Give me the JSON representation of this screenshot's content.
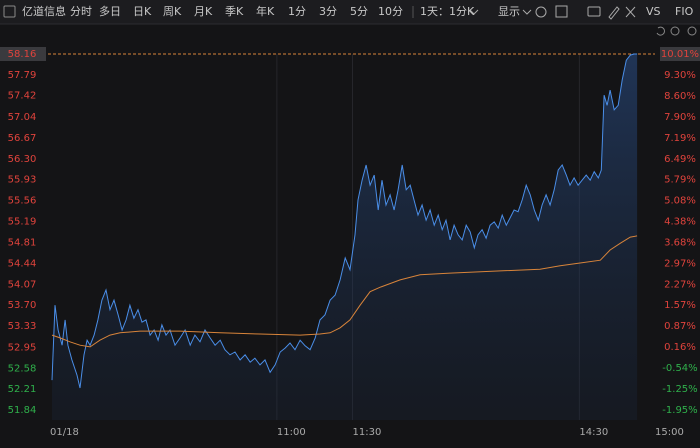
{
  "toolbar": {
    "stock": "亿道信息",
    "tabs": [
      "分时",
      "多日",
      "日K",
      "周K",
      "月K",
      "季K",
      "年K",
      "1分",
      "3分",
      "5分",
      "10分"
    ],
    "period": "1天：1分K",
    "display": "显示",
    "vs": "VS",
    "fio": "FIO"
  },
  "chart_data": {
    "type": "line",
    "xlim": [
      0,
      240
    ],
    "xticks": [
      {
        "value": 0,
        "label": "01/18"
      },
      {
        "value": 90,
        "label": "11:00"
      },
      {
        "value": 120,
        "label": "11:30"
      },
      {
        "value": 210,
        "label": "14:30"
      },
      {
        "value": 240,
        "label": "15:00"
      }
    ],
    "ylim": [
      51.84,
      58.16
    ],
    "yticks": [
      58.16,
      57.79,
      57.42,
      57.04,
      56.67,
      {
        "value": 56.3,
        "label": "56.30"
      },
      55.93,
      55.56,
      55.19,
      54.81,
      54.44,
      54.07,
      {
        "value": 53.7,
        "label": "53.70"
      },
      53.33,
      52.95,
      52.58,
      52.21,
      51.84
    ],
    "y2lim": [
      -1.95,
      10.01
    ],
    "y2ticks": [
      {
        "value": 10.01,
        "label": "10.01%"
      },
      {
        "value": 9.3,
        "label": "9.30%"
      },
      {
        "value": 8.6,
        "label": "8.60%"
      },
      {
        "value": 7.9,
        "label": "7.90%"
      },
      {
        "value": 7.19,
        "label": "7.19%"
      },
      {
        "value": 6.49,
        "label": "6.49%"
      },
      {
        "value": 5.79,
        "label": "5.79%"
      },
      {
        "value": 5.08,
        "label": "5.08%"
      },
      {
        "value": 4.38,
        "label": "4.38%"
      },
      {
        "value": 3.68,
        "label": "3.68%"
      },
      {
        "value": 2.97,
        "label": "2.97%"
      },
      {
        "value": 2.27,
        "label": "2.27%"
      },
      {
        "value": 1.57,
        "label": "1.57%"
      },
      {
        "value": 0.87,
        "label": "0.87%"
      },
      {
        "value": 0.16,
        "label": "0.16%"
      },
      {
        "value": -0.54,
        "label": "-0.54%"
      },
      {
        "value": -1.25,
        "label": "-1.25%"
      },
      {
        "value": -1.95,
        "label": "-1.95%"
      }
    ],
    "up_color": "#e0433c",
    "down_color": "#2fb04b",
    "grid": true,
    "series": [
      {
        "color": "#4a8ee8",
        "area": true,
        "x": [
          0.8,
          2,
          3.2,
          4.8,
          6,
          7.1,
          8.7,
          10.7,
          11.9,
          13.5,
          14.7,
          15.9,
          17.5,
          19,
          20.6,
          22.2,
          23.8,
          25.4,
          27,
          28.6,
          30.2,
          31.7,
          33.3,
          34.9,
          36.5,
          38.1,
          39.7,
          41.3,
          42.9,
          44.4,
          46,
          47.6,
          49.6,
          51.6,
          53.6,
          55.6,
          57.5,
          59.5,
          61.5,
          63.5,
          65.5,
          67.5,
          69.4,
          71.4,
          73.4,
          75.4,
          77.4,
          79.4,
          81.3,
          83.3,
          85.3,
          87.3,
          89.3,
          91.3,
          93.3,
          95.2,
          97.2,
          99.2,
          101.2,
          103.2,
          105.2,
          107.1,
          109.1,
          111.1,
          113.1,
          115.1,
          117.1,
          119,
          121,
          122.2,
          123.8,
          125.4,
          127,
          128.6,
          130.2,
          131.7,
          133.3,
          134.9,
          136.5,
          138.1,
          139.7,
          141.3,
          142.9,
          144.4,
          146,
          147.6,
          149.2,
          150.8,
          152.4,
          154,
          155.6,
          157.1,
          158.7,
          160.3,
          161.9,
          163.5,
          165.1,
          166.7,
          168.3,
          169.8,
          171.4,
          173,
          174.6,
          176.2,
          177.8,
          179.4,
          181,
          182.5,
          184.1,
          185.7,
          187.3,
          188.9,
          190.5,
          192.1,
          193.7,
          195.2,
          196.8,
          198.4,
          200,
          201.6,
          203.2,
          204.8,
          206.3,
          207.9,
          209.5,
          211.1,
          212.7,
          214.3,
          215.9,
          217.5,
          218.7,
          219.8,
          221,
          222.2,
          223.8,
          225.4,
          227,
          228.6,
          230.2,
          231.7,
          232.9
        ],
        "values": [
          52.37,
          53.7,
          53.26,
          52.99,
          53.44,
          52.99,
          52.73,
          52.46,
          52.23,
          52.82,
          53.08,
          52.99,
          53.17,
          53.44,
          53.79,
          53.97,
          53.62,
          53.79,
          53.53,
          53.26,
          53.44,
          53.7,
          53.47,
          53.62,
          53.4,
          53.44,
          53.17,
          53.26,
          53.08,
          53.35,
          53.17,
          53.26,
          52.99,
          53.12,
          53.26,
          52.99,
          53.17,
          53.05,
          53.26,
          53.12,
          52.99,
          53.08,
          52.91,
          52.82,
          52.87,
          52.73,
          52.82,
          52.69,
          52.76,
          52.64,
          52.73,
          52.51,
          52.64,
          52.87,
          52.94,
          53.03,
          52.91,
          53.08,
          52.98,
          52.91,
          53.12,
          53.44,
          53.53,
          53.79,
          53.88,
          54.15,
          54.54,
          54.33,
          54.95,
          55.57,
          55.92,
          56.19,
          55.83,
          56.01,
          55.39,
          55.92,
          55.48,
          55.66,
          55.39,
          55.75,
          56.19,
          55.75,
          55.83,
          55.57,
          55.3,
          55.48,
          55.21,
          55.39,
          55.12,
          55.3,
          55.04,
          55.21,
          54.86,
          55.12,
          54.95,
          54.86,
          55.12,
          55,
          54.72,
          54.95,
          55.04,
          54.89,
          55.12,
          55.18,
          55.07,
          55.3,
          55.12,
          55.25,
          55.39,
          55.36,
          55.57,
          55.83,
          55.66,
          55.39,
          55.21,
          55.48,
          55.66,
          55.48,
          55.75,
          56.1,
          56.19,
          56.01,
          55.83,
          55.96,
          55.83,
          55.92,
          56.01,
          55.92,
          56.07,
          55.96,
          56.1,
          57.43,
          57.25,
          57.52,
          57.17,
          57.25,
          57.7,
          58.05,
          58.14,
          58.16,
          58.16
        ]
      },
      {
        "color": "#d8843a",
        "area": false,
        "x": [
          0.8,
          4,
          7.9,
          11.9,
          15.9,
          19.8,
          23.8,
          27.8,
          35.7,
          51.6,
          67.5,
          83.3,
          99.2,
          107.1,
          111.1,
          115.1,
          119,
          123,
          127,
          131,
          138.9,
          146.8,
          158.7,
          178.6,
          194.4,
          202.4,
          210.3,
          218.3,
          222.2,
          226.2,
          230.2,
          232.9
        ],
        "values": [
          53.17,
          53.12,
          53.05,
          52.99,
          52.96,
          53.08,
          53.17,
          53.21,
          53.24,
          53.24,
          53.21,
          53.19,
          53.17,
          53.19,
          53.21,
          53.3,
          53.44,
          53.7,
          53.94,
          54.02,
          54.15,
          54.24,
          54.27,
          54.31,
          54.34,
          54.4,
          54.45,
          54.5,
          54.68,
          54.8,
          54.91,
          54.93
        ]
      }
    ]
  }
}
